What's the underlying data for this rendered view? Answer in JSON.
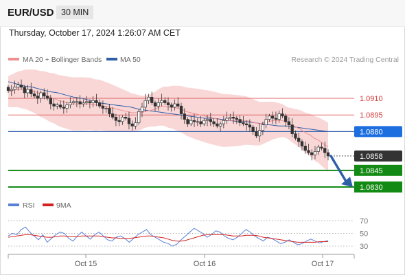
{
  "header": {
    "pair": "EUR/USD",
    "timeframe": "30 MIN",
    "datetime": "Thursday, October 17, 2024 1:26:07 AM CET"
  },
  "legend": {
    "ma20": "MA 20 + Bollinger Bands",
    "ma50": "MA 50",
    "rsi": "RSI",
    "ma9": "9MA"
  },
  "credit": "Research © 2024 Trading Central",
  "colors": {
    "resistance": "#e06666",
    "ma50": "#2e5ea8",
    "support": "#138a13",
    "current": "#333333",
    "pivot": "#1d6fe0",
    "bands": "#f7c9c9",
    "ma20": "#ef8f8f",
    "rsi": "#5a7fd6",
    "rsi_ma": "#d42020",
    "arrow": "#2f5fa8"
  },
  "chart_data": [
    {
      "type": "candlestick",
      "title": "EUR/USD 30 MIN",
      "x_tick_labels": [
        "Oct 15",
        "Oct 16",
        "Oct 17"
      ],
      "levels": [
        {
          "value": 1.091,
          "label": "1.0910",
          "kind": "resistance"
        },
        {
          "value": 1.0895,
          "label": "1.0895",
          "kind": "resistance"
        },
        {
          "value": 1.088,
          "label": "1.0880",
          "kind": "pivot"
        },
        {
          "value": 1.0858,
          "label": "1.0858",
          "kind": "current"
        },
        {
          "value": 1.0845,
          "label": "1.0845",
          "kind": "support"
        },
        {
          "value": 1.083,
          "label": "1.0830",
          "kind": "support"
        }
      ],
      "close_series": [
        1.0917,
        1.0918,
        1.092,
        1.0922,
        1.092,
        1.0915,
        1.0918,
        1.0914,
        1.0912,
        1.091,
        1.0915,
        1.0912,
        1.091,
        1.0905,
        1.0903,
        1.0904,
        1.0902,
        1.0901,
        1.0904,
        1.0906,
        1.0907,
        1.0907,
        1.0905,
        1.0906,
        1.0907,
        1.0906,
        1.0908,
        1.0906,
        1.0903,
        1.0901,
        1.0901,
        1.0896,
        1.0893,
        1.089,
        1.0889,
        1.0893,
        1.0892,
        1.0887,
        1.0885,
        1.0888,
        1.0898,
        1.0902,
        1.0908,
        1.0911,
        1.0906,
        1.0903,
        1.0906,
        1.0908,
        1.0906,
        1.0904,
        1.0902,
        1.0905,
        1.0903,
        1.0896,
        1.0891,
        1.0887,
        1.089,
        1.0889,
        1.0889,
        1.0887,
        1.089,
        1.0891,
        1.0889,
        1.0887,
        1.0885,
        1.0887,
        1.089,
        1.0892,
        1.0893,
        1.0892,
        1.0891,
        1.0888,
        1.0887,
        1.0886,
        1.0884,
        1.088,
        1.0876,
        1.0881,
        1.0886,
        1.0891,
        1.0894,
        1.0892,
        1.0891,
        1.0896,
        1.0894,
        1.0889,
        1.0886,
        1.0878,
        1.0874,
        1.0871,
        1.0867,
        1.0863,
        1.0861,
        1.0859,
        1.0862,
        1.0866,
        1.0865,
        1.0861,
        1.0858
      ],
      "ma20_series": [
        1.0916,
        1.0917,
        1.0918,
        1.0918,
        1.0918,
        1.0917,
        1.0916,
        1.0914,
        1.0913,
        1.0911,
        1.091,
        1.0908,
        1.0907,
        1.0906,
        1.0905,
        1.0905,
        1.0905,
        1.0905,
        1.0905,
        1.0904,
        1.0904,
        1.0903,
        1.0902,
        1.0901,
        1.09,
        1.0899,
        1.0898,
        1.0897,
        1.0897,
        1.0897,
        1.0898,
        1.0899,
        1.09,
        1.0902,
        1.0903,
        1.0902,
        1.0902,
        1.0901,
        1.09,
        1.0898,
        1.0897,
        1.0896,
        1.0895,
        1.0894,
        1.0893,
        1.0892,
        1.0891,
        1.089,
        1.089,
        1.089,
        1.089,
        1.089,
        1.089,
        1.0889,
        1.0888,
        1.0887,
        1.0888,
        1.0889,
        1.089,
        1.089,
        1.089,
        1.0888,
        1.0886,
        1.0884,
        1.0882,
        1.0879,
        1.0877,
        1.0874,
        1.0872,
        1.0869,
        1.0866
      ],
      "ma50_series": [
        1.0925,
        1.0923,
        1.0921,
        1.092,
        1.0918,
        1.0916,
        1.0915,
        1.0913,
        1.0911,
        1.091,
        1.0908,
        1.0906,
        1.0905,
        1.0904,
        1.0903,
        1.0902,
        1.09,
        1.0899,
        1.0898,
        1.0897,
        1.0896,
        1.0895,
        1.0894,
        1.0893,
        1.0892,
        1.0892,
        1.0891,
        1.089,
        1.0889,
        1.0889,
        1.0888,
        1.0887,
        1.0886,
        1.0885,
        1.0885,
        1.0884,
        1.0883,
        1.0882,
        1.0881,
        1.088
      ]
    },
    {
      "type": "line",
      "title": "RSI",
      "y_tick_labels": [
        "70",
        "50",
        "30"
      ],
      "ylim": [
        25,
        75
      ],
      "series": [
        {
          "name": "RSI",
          "values": [
            46,
            50,
            48,
            56,
            60,
            52,
            46,
            40,
            48,
            36,
            42,
            48,
            52,
            50,
            42,
            38,
            46,
            52,
            46,
            41,
            48,
            52,
            46,
            40,
            38,
            44,
            46,
            42,
            36,
            42,
            48,
            52,
            56,
            48,
            44,
            40,
            36,
            34,
            30,
            33,
            40,
            46,
            52,
            58,
            54,
            50,
            44,
            48,
            54,
            52,
            46,
            42,
            40,
            44,
            50,
            56,
            52,
            46,
            42,
            38,
            44,
            42,
            38,
            34,
            36,
            40,
            36,
            32,
            34,
            38,
            41,
            38,
            35,
            37,
            39
          ]
        },
        {
          "name": "9MA",
          "values": [
            44,
            45,
            46,
            47,
            48,
            48,
            47,
            46,
            45,
            44,
            44,
            45,
            46,
            46,
            45,
            45,
            45,
            46,
            46,
            46,
            46,
            46,
            45,
            44,
            43,
            43,
            42,
            42,
            42,
            43,
            44,
            45,
            46,
            46,
            45,
            44,
            43,
            41,
            39,
            38,
            38,
            39,
            41,
            43,
            45,
            47,
            48,
            48,
            48,
            48,
            48,
            47,
            46,
            46,
            46,
            47,
            47,
            47,
            46,
            44,
            43,
            42,
            41,
            40,
            39,
            38,
            37,
            36,
            36,
            36,
            36,
            36,
            37,
            37,
            37
          ]
        }
      ]
    }
  ]
}
